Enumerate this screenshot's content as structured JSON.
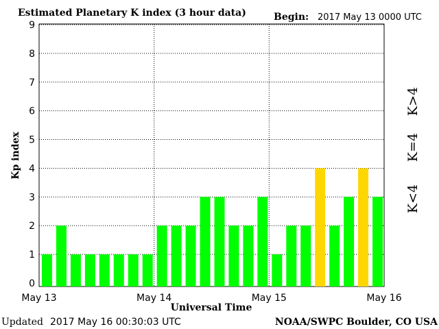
{
  "header": {
    "title": "Estimated Planetary K index (3 hour data)",
    "begin_label": "Begin:",
    "begin_value": "2017 May 13 0000 UTC"
  },
  "footer": {
    "updated_label": "Updated",
    "updated_value": "2017 May 16 00:30:03 UTC",
    "source": "NOAA/SWPC Boulder, CO USA"
  },
  "legend": {
    "low": {
      "label": "K<4",
      "color": "#00ff00"
    },
    "mid": {
      "label": "K=4",
      "color": "#ffd700"
    },
    "high": {
      "label": "K>4",
      "color": "#ff2a00"
    }
  },
  "chart_data": {
    "type": "bar",
    "ylabel": "Kp index",
    "xlabel": "Universal Time",
    "ylim": [
      0,
      9
    ],
    "yticks": [
      "0",
      "1",
      "2",
      "3",
      "4",
      "5",
      "6",
      "7",
      "8",
      "9"
    ],
    "xticks": [
      "May 13",
      "May 14",
      "May 15",
      "May 16"
    ],
    "interval_hours": 3,
    "grid": "dotted",
    "values": [
      1,
      2,
      1,
      1,
      1,
      1,
      1,
      1,
      2,
      2,
      2,
      3,
      3,
      2,
      2,
      3,
      1,
      2,
      2,
      4,
      2,
      3,
      4,
      3
    ],
    "colors": {
      "below_4": "#00ff00",
      "equal_4": "#ffd700",
      "above_4": "#ff2a00"
    }
  }
}
